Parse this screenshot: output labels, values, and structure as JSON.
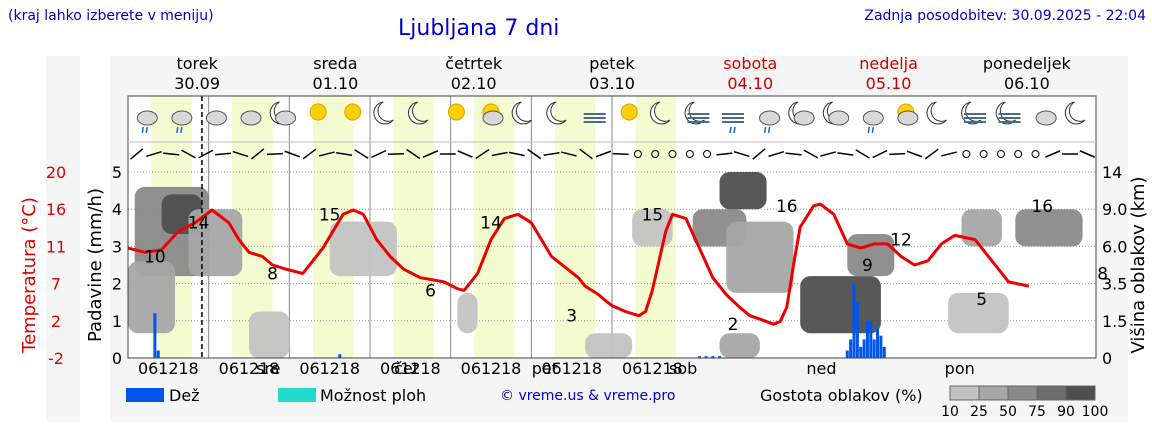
{
  "header": {
    "menu_hint": "(kraj lahko izberete v meniju)",
    "title": "Ljubljana 7 dni",
    "updated": "Zadnja posodobitev: 30.09.2025 - 22:04"
  },
  "days": [
    {
      "name": "torek",
      "date": "30.09",
      "weekend": false,
      "abbr": "",
      "icons": [
        "cloud-rain-icon",
        "cloud-rain-icon",
        "cloud-icon",
        "cloud-icon"
      ]
    },
    {
      "name": "sreda",
      "date": "01.10",
      "weekend": false,
      "abbr": "sre",
      "icons": [
        "moon-cloud-icon",
        "sun-icon",
        "sun-icon",
        "moon-icon"
      ]
    },
    {
      "name": "četrtek",
      "date": "02.10",
      "weekend": false,
      "abbr": "čet",
      "icons": [
        "moon-icon",
        "sun-icon",
        "sun-cloud-icon",
        "moon-icon"
      ]
    },
    {
      "name": "petek",
      "date": "03.10",
      "weekend": false,
      "abbr": "pet",
      "icons": [
        "moon-icon",
        "fog-icon",
        "sun-icon",
        "moon-icon"
      ]
    },
    {
      "name": "sobota",
      "date": "04.10",
      "weekend": true,
      "abbr": "sob",
      "icons": [
        "moon-fog-icon",
        "fog-rain-icon",
        "cloud-rain-icon",
        "moon-cloud-icon"
      ]
    },
    {
      "name": "nedelja",
      "date": "05.10",
      "weekend": true,
      "abbr": "ned",
      "icons": [
        "moon-cloud-icon",
        "cloud-rain-icon",
        "sun-cloud-icon",
        "moon-icon"
      ]
    },
    {
      "name": "ponedeljek",
      "date": "06.10",
      "weekend": false,
      "abbr": "pon",
      "icons": [
        "moon-fog-icon",
        "moon-fog-icon",
        "cloud-icon",
        "moon-icon"
      ]
    }
  ],
  "hour_labels": [
    "06",
    "12",
    "18"
  ],
  "axes": {
    "left_label": "Padavine (mm/h)",
    "left_ticks": [
      "0",
      "1",
      "2",
      "3",
      "4",
      "5"
    ],
    "temp_label": "Temperatura (°C)",
    "temp_ticks": [
      "-2",
      "2",
      "7",
      "11",
      "16",
      "20"
    ],
    "right_label": "Višina oblakov (km)",
    "right_ticks": [
      "0",
      "1.5",
      "3.5",
      "6.0",
      "9.0",
      "14"
    ]
  },
  "chart_data": {
    "type": "line",
    "x_unit": "hours from 30.09 00:00",
    "temperature_c": {
      "x": [
        0,
        5,
        10,
        15,
        20,
        25,
        30,
        33,
        36,
        40,
        43,
        47,
        52,
        58,
        64,
        67,
        70,
        74,
        78,
        82,
        87,
        94,
        98,
        100,
        104,
        108,
        112,
        116,
        120,
        126,
        134,
        136,
        140,
        142,
        144,
        148,
        152,
        154,
        156,
        160,
        162,
        166,
        170,
        174,
        178,
        182,
        185,
        188,
        192,
        194,
        196,
        198,
        200,
        204,
        206,
        210,
        214,
        218,
        222,
        226,
        230,
        234,
        238,
        242,
        246,
        252,
        258,
        262,
        268
      ],
      "y": [
        11,
        10.5,
        10.8,
        13,
        14,
        15.5,
        14,
        12,
        10.5,
        10,
        9,
        8.5,
        8,
        11,
        15,
        15.5,
        15,
        12,
        10,
        8.5,
        7.5,
        7,
        6.2,
        6,
        8,
        12,
        14.5,
        15,
        14,
        10,
        7.5,
        6.5,
        5.5,
        4.8,
        4.2,
        3.5,
        3,
        3.5,
        6,
        13,
        15,
        14.5,
        11,
        7.5,
        5.5,
        4,
        3,
        2.6,
        2,
        2.3,
        4,
        9,
        13.5,
        16,
        16.2,
        15,
        11.5,
        11,
        11.5,
        11.5,
        10,
        9,
        9.5,
        11.5,
        12.5,
        12,
        9,
        7,
        6.5
      ]
    },
    "temperature_labels": [
      {
        "x": 8,
        "value": "10"
      },
      {
        "x": 21,
        "value": "14"
      },
      {
        "x": 43,
        "value": "8"
      },
      {
        "x": 60,
        "value": "15"
      },
      {
        "x": 90,
        "value": "6"
      },
      {
        "x": 108,
        "value": "14"
      },
      {
        "x": 132,
        "value": "3"
      },
      {
        "x": 156,
        "value": "15"
      },
      {
        "x": 180,
        "value": "2"
      },
      {
        "x": 196,
        "value": "16"
      },
      {
        "x": 220,
        "value": "9"
      },
      {
        "x": 230,
        "value": "12"
      },
      {
        "x": 254,
        "value": "5"
      },
      {
        "x": 272,
        "value": "16"
      },
      {
        "x": 290,
        "value": "8"
      }
    ],
    "rain_bars": [
      {
        "x": 8,
        "mm": 1.2
      },
      {
        "x": 9,
        "mm": 0.2
      },
      {
        "x": 63,
        "mm": 0.1
      },
      {
        "x": 170,
        "mm": 0.05
      },
      {
        "x": 172,
        "mm": 0.05
      },
      {
        "x": 174,
        "mm": 0.05
      },
      {
        "x": 176,
        "mm": 0.05
      },
      {
        "x": 214,
        "mm": 0.2
      },
      {
        "x": 215,
        "mm": 0.5
      },
      {
        "x": 216,
        "mm": 2.0
      },
      {
        "x": 217,
        "mm": 1.5
      },
      {
        "x": 218,
        "mm": 0.3
      },
      {
        "x": 219,
        "mm": 0.5
      },
      {
        "x": 220,
        "mm": 1.0
      },
      {
        "x": 221,
        "mm": 1.0
      },
      {
        "x": 222,
        "mm": 0.5
      },
      {
        "x": 223,
        "mm": 0.8
      },
      {
        "x": 224,
        "mm": 0.6
      },
      {
        "x": 225,
        "mm": 0.3
      }
    ],
    "clouds": [
      {
        "x": [
          2,
          24
        ],
        "alt_km": [
          4,
          12
        ],
        "density": 75
      },
      {
        "x": [
          10,
          22
        ],
        "alt_km": [
          7,
          11
        ],
        "density": 100
      },
      {
        "x": [
          0,
          14
        ],
        "alt_km": [
          1,
          5
        ],
        "density": 50
      },
      {
        "x": [
          18,
          34
        ],
        "alt_km": [
          4,
          9
        ],
        "density": 50
      },
      {
        "x": [
          36,
          48
        ],
        "alt_km": [
          0,
          2
        ],
        "density": 25
      },
      {
        "x": [
          60,
          80
        ],
        "alt_km": [
          4,
          8
        ],
        "density": 25
      },
      {
        "x": [
          98,
          104
        ],
        "alt_km": [
          1,
          3
        ],
        "density": 25
      },
      {
        "x": [
          150,
          162
        ],
        "alt_km": [
          6,
          9
        ],
        "density": 25
      },
      {
        "x": [
          136,
          150
        ],
        "alt_km": [
          0,
          1
        ],
        "density": 25
      },
      {
        "x": [
          168,
          184
        ],
        "alt_km": [
          6,
          9
        ],
        "density": 75
      },
      {
        "x": [
          176,
          190
        ],
        "alt_km": [
          9,
          14
        ],
        "density": 100
      },
      {
        "x": [
          178,
          198
        ],
        "alt_km": [
          3,
          8
        ],
        "density": 50
      },
      {
        "x": [
          200,
          224
        ],
        "alt_km": [
          1,
          4
        ],
        "density": 100
      },
      {
        "x": [
          214,
          228
        ],
        "alt_km": [
          4,
          7
        ],
        "density": 75
      },
      {
        "x": [
          176,
          188
        ],
        "alt_km": [
          0,
          1
        ],
        "density": 50
      },
      {
        "x": [
          248,
          260
        ],
        "alt_km": [
          6,
          9
        ],
        "density": 50
      },
      {
        "x": [
          264,
          284
        ],
        "alt_km": [
          6,
          9
        ],
        "density": 75
      },
      {
        "x": [
          244,
          262
        ],
        "alt_km": [
          1,
          3
        ],
        "density": 25
      }
    ],
    "cloud_colors": {
      "10": "#dcdcdc",
      "25": "#c3c3c3",
      "50": "#a7a7a7",
      "75": "#8a8a8a",
      "90": "#6d6d6d",
      "100": "#4f4f4f"
    },
    "now_hour": 22
  },
  "legend": {
    "rain_label": "Dež",
    "storm_label": "Možnost ploh",
    "rain_color": "#0055ee",
    "storm_color": "#22ddcc",
    "copyright": "© vreme.us & vreme.pro",
    "density_label": "Gostota oblakov (%)",
    "density_ticks": [
      "10",
      "25",
      "50",
      "75",
      "90",
      "100"
    ]
  },
  "colors": {
    "temp_line": "#ee0000",
    "weekend": "#cc0000",
    "title": "#0000cc",
    "daylight": "#f4fbd0"
  }
}
